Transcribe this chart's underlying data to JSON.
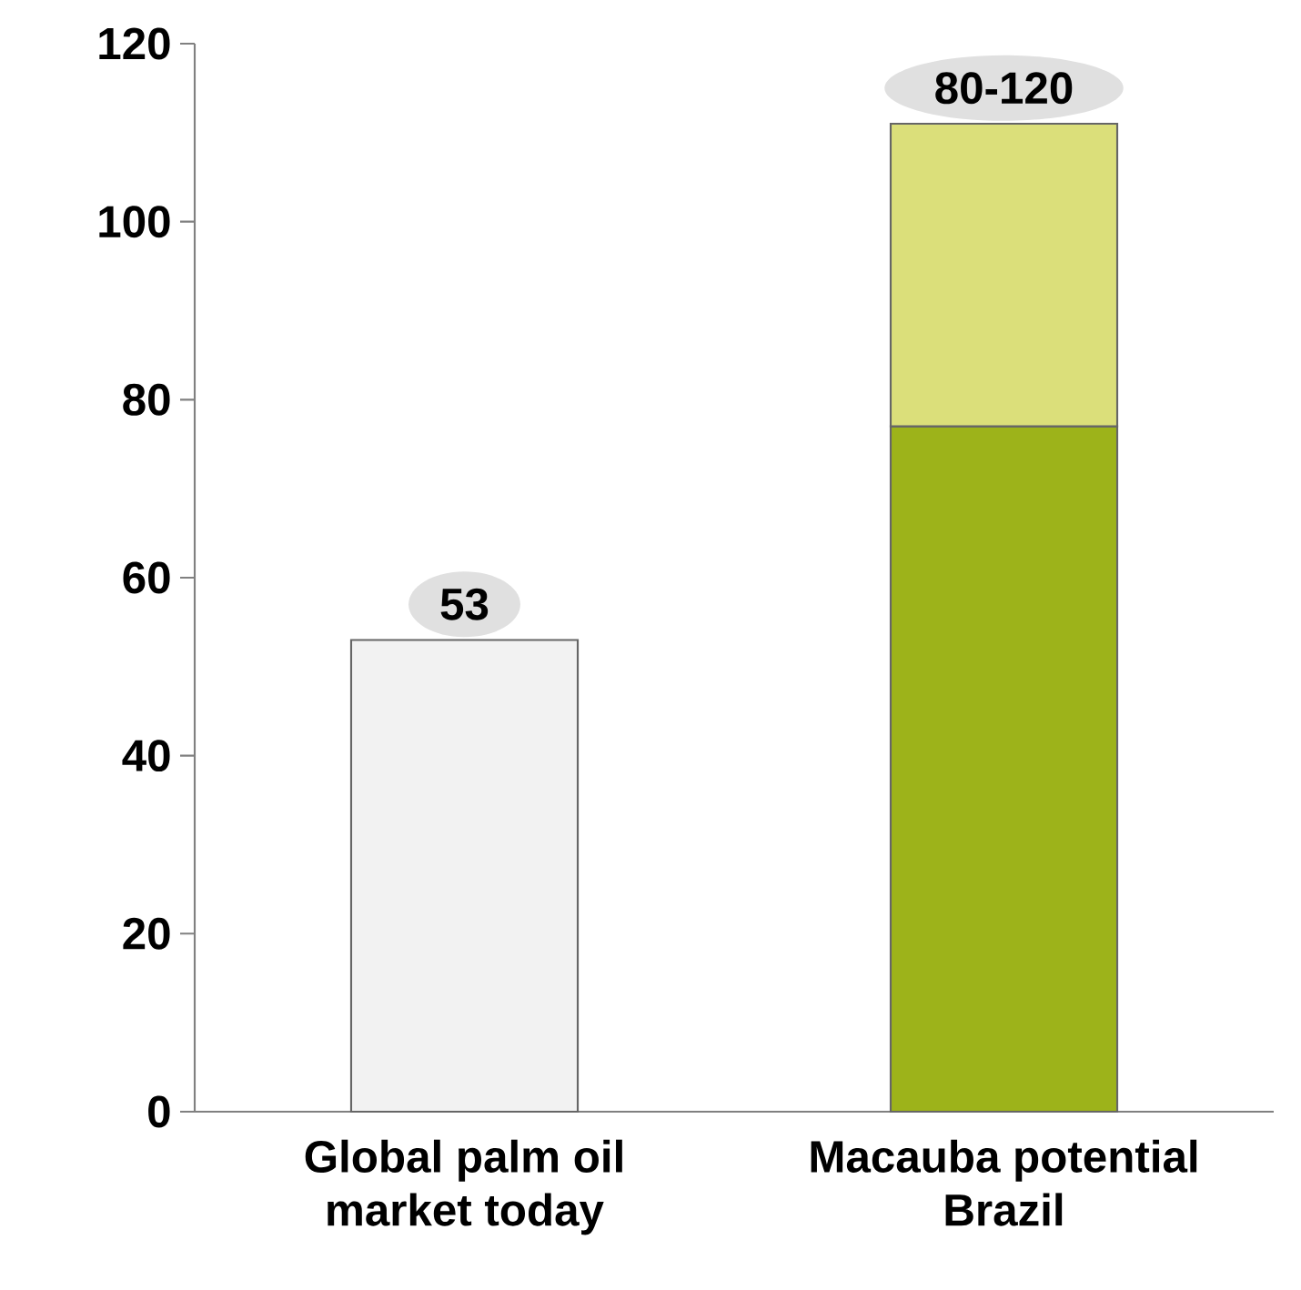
{
  "chart_data": {
    "type": "bar",
    "stacked": true,
    "categories": [
      "Global palm oil market today",
      "Macauba potential Brazil"
    ],
    "series": [
      {
        "colors": [
          "#f2f2f2",
          "#9db31a"
        ],
        "values": [
          53,
          77
        ]
      },
      {
        "colors": [
          "#dbdf7a",
          "#dbdf7a"
        ],
        "values": [
          null,
          34
        ]
      }
    ],
    "totals": [
      "53",
      "80-120"
    ],
    "ylim": [
      0,
      120
    ],
    "yticks": [
      0,
      20,
      40,
      60,
      80,
      100,
      120
    ]
  }
}
